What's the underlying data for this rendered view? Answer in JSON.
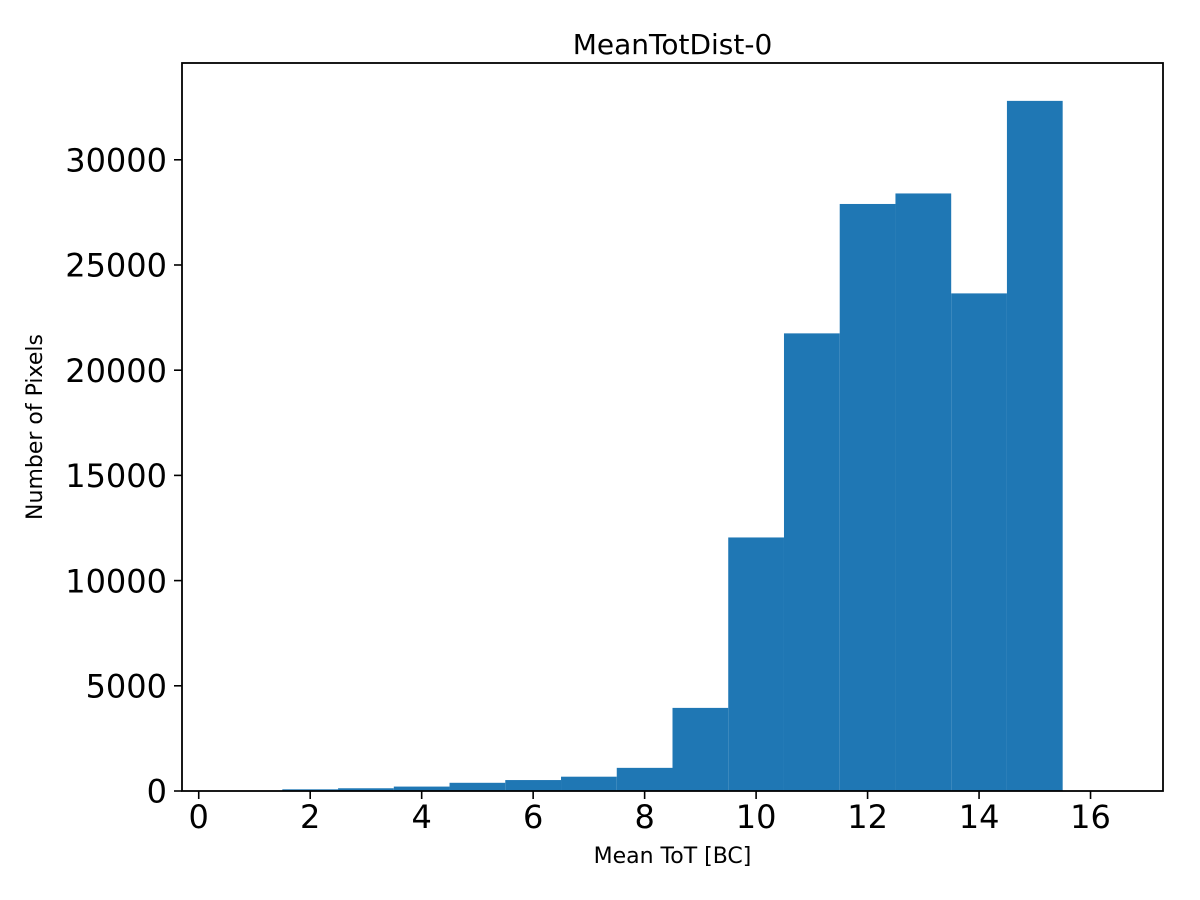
{
  "chart_data": {
    "type": "bar",
    "subtype": "histogram",
    "title": "MeanTotDist-0",
    "xlabel": "Mean ToT [BC]",
    "ylabel": "Number of Pixels",
    "bin_edges": [
      1.5,
      2.5,
      3.5,
      4.5,
      5.5,
      6.5,
      7.5,
      8.5,
      9.5,
      10.5,
      11.5,
      12.5,
      13.5,
      14.5,
      15.5
    ],
    "counts": [
      80,
      130,
      210,
      390,
      520,
      680,
      1100,
      3950,
      12050,
      21750,
      27900,
      28400,
      23650,
      32800
    ],
    "xticks": [
      0,
      2,
      4,
      6,
      8,
      10,
      12,
      14,
      16
    ],
    "yticks": [
      0,
      5000,
      10000,
      15000,
      20000,
      25000,
      30000
    ],
    "xlim": [
      -0.3,
      17.3
    ],
    "ylim": [
      0,
      34600
    ],
    "bar_color": "#1f77b4",
    "axis_color": "#000000",
    "background_color": "#ffffff",
    "grid": false,
    "legend_position": "none"
  }
}
